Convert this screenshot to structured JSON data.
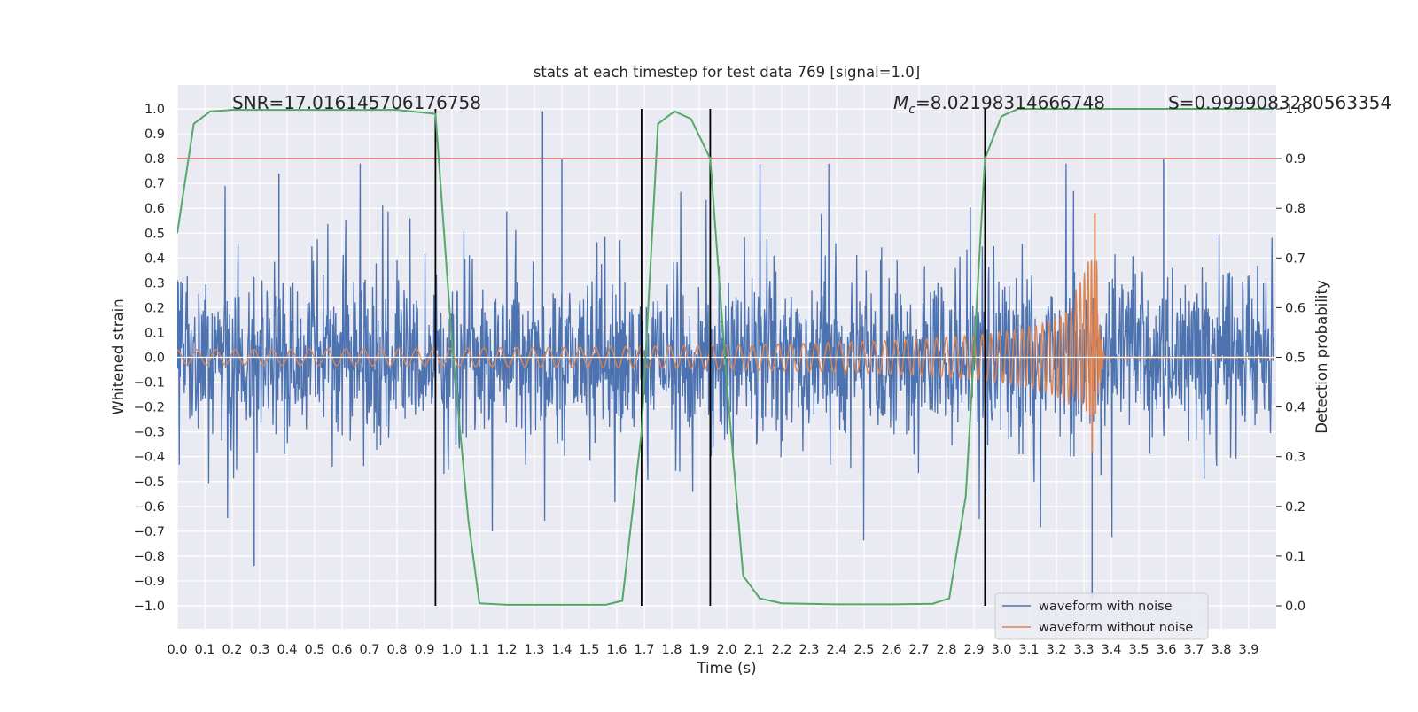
{
  "chart_data": {
    "type": "line",
    "title": "stats at each timestep for test data 769 [signal=1.0]",
    "xlabel": "Time (s)",
    "ylabel": "Whitened strain",
    "y2label": "Detection probability",
    "xlim": [
      0.0,
      4.0
    ],
    "ylim": [
      -1.1,
      1.1
    ],
    "y2lim": [
      -0.05,
      1.0
    ],
    "x_ticks": [
      "0.0",
      "0.1",
      "0.2",
      "0.3",
      "0.4",
      "0.5",
      "0.6",
      "0.7",
      "0.8",
      "0.9",
      "1.0",
      "1.1",
      "1.2",
      "1.3",
      "1.4",
      "1.5",
      "1.6",
      "1.7",
      "1.8",
      "1.9",
      "2.0",
      "2.1",
      "2.2",
      "2.3",
      "2.4",
      "2.5",
      "2.6",
      "2.7",
      "2.8",
      "2.9",
      "3.0",
      "3.1",
      "3.2",
      "3.3",
      "3.4",
      "3.5",
      "3.6",
      "3.7",
      "3.8",
      "3.9"
    ],
    "y_ticks": [
      "1.0",
      "0.9",
      "0.8",
      "0.7",
      "0.6",
      "0.5",
      "0.4",
      "0.3",
      "0.2",
      "0.1",
      "0.0",
      "−0.1",
      "−0.2",
      "−0.3",
      "−0.4",
      "−0.5",
      "−0.6",
      "−0.7",
      "−0.8",
      "−0.9",
      "−1.0"
    ],
    "y2_ticks": [
      "1.0",
      "0.9",
      "0.8",
      "0.7",
      "0.6",
      "0.5",
      "0.4",
      "0.3",
      "0.2",
      "0.1",
      "0.0"
    ],
    "grid": true,
    "legend_position": "lower-right",
    "annotations": {
      "snr": "SNR=17.016145706176758",
      "mc_prefix": "M",
      "mc_sub": "c",
      "mc_value": "=8.02198314666748",
      "s": "S=0.9999083280563354"
    },
    "threshold": {
      "y2": 0.9,
      "color": "#c44e52"
    },
    "event_lines_x": [
      0.94,
      1.69,
      1.94,
      2.94
    ],
    "series": [
      {
        "name": "waveform with noise",
        "color": "#4c72b0",
        "description_range": [
          -0.84,
          0.99
        ],
        "spikes": [
          [
            0.28,
            -0.84
          ],
          [
            0.37,
            0.74
          ],
          [
            1.33,
            0.99
          ],
          [
            1.4,
            0.8
          ],
          [
            3.33,
            -0.97
          ],
          [
            3.59,
            0.8
          ]
        ]
      },
      {
        "name": "waveform without noise",
        "color": "#dd8452",
        "chirp": {
          "start_amplitude": 0.03,
          "peak_time": 3.35,
          "peak_max": 0.58,
          "peak_min": -0.38
        }
      },
      {
        "name": "detection probability",
        "color": "#55a868",
        "axis": "y2",
        "x": [
          0.0,
          0.06,
          0.12,
          0.2,
          0.5,
          0.8,
          0.94,
          1.0,
          1.06,
          1.1,
          1.2,
          1.4,
          1.56,
          1.62,
          1.69,
          1.75,
          1.81,
          1.87,
          1.94,
          2.0,
          2.06,
          2.12,
          2.2,
          2.4,
          2.6,
          2.75,
          2.81,
          2.87,
          2.94,
          3.0,
          3.06,
          3.5,
          3.99
        ],
        "values": [
          0.75,
          0.97,
          0.995,
          0.998,
          0.998,
          0.998,
          0.99,
          0.53,
          0.17,
          0.005,
          0.002,
          0.002,
          0.002,
          0.01,
          0.35,
          0.97,
          0.995,
          0.98,
          0.9,
          0.45,
          0.06,
          0.015,
          0.005,
          0.003,
          0.003,
          0.004,
          0.015,
          0.22,
          0.9,
          0.985,
          1.0,
          1.0,
          1.0
        ]
      }
    ]
  }
}
